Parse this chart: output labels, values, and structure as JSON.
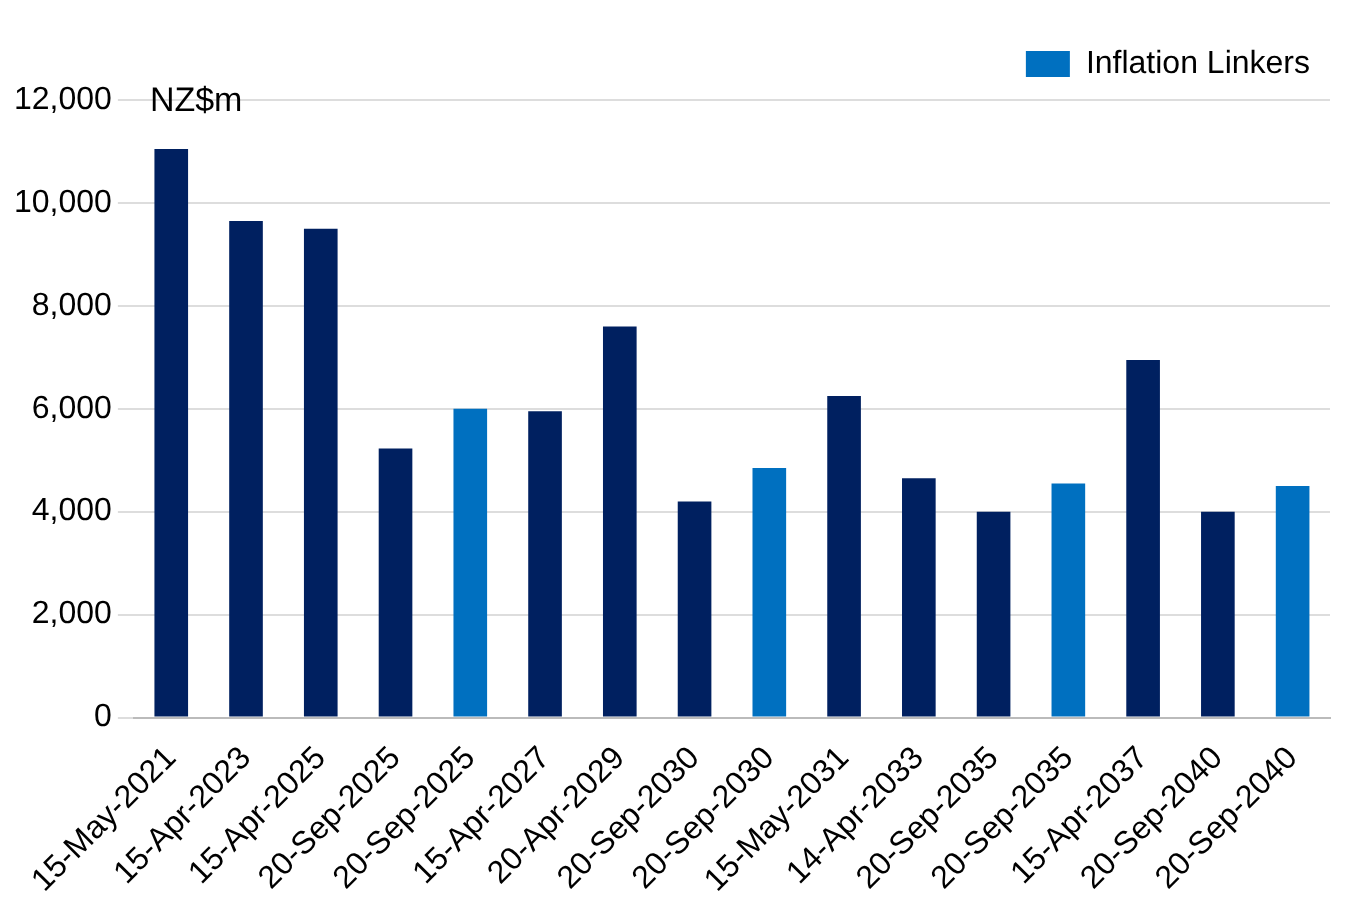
{
  "chart_data": {
    "type": "bar",
    "ylabel": "NZ$m",
    "stacked": true,
    "categories": [
      "15-May-2021",
      "15-Apr-2023",
      "15-Apr-2025",
      "20-Sep-2025",
      "20-Sep-2025",
      "15-Apr-2027",
      "20-Apr-2029",
      "20-Sep-2030",
      "20-Sep-2030",
      "15-May-2031",
      "14-Apr-2033",
      "20-Sep-2035",
      "20-Sep-2035",
      "15-Apr-2037",
      "20-Sep-2040",
      "20-Sep-2040"
    ],
    "series": [
      {
        "color": "#002060",
        "values": [
          11050,
          9650,
          9500,
          5230,
          null,
          5950,
          7600,
          4200,
          null,
          6250,
          4650,
          4000,
          null,
          6950,
          4000,
          null
        ]
      },
      {
        "name": "Inflation Linkers",
        "color": "#0070c0",
        "values": [
          null,
          null,
          null,
          null,
          6000,
          null,
          null,
          null,
          4850,
          null,
          null,
          null,
          4550,
          null,
          null,
          4500
        ]
      }
    ],
    "ylim": [
      0,
      12000
    ],
    "yticks": [
      {
        "value": 0,
        "label": "0"
      },
      {
        "value": 2000,
        "label": "2,000"
      },
      {
        "value": 4000,
        "label": "4,000"
      },
      {
        "value": 6000,
        "label": "6,000"
      },
      {
        "value": 8000,
        "label": "8,000"
      },
      {
        "value": 10000,
        "label": "10,000"
      },
      {
        "value": 12000,
        "label": "12,000"
      }
    ],
    "grid": "y",
    "legend": "top right"
  }
}
